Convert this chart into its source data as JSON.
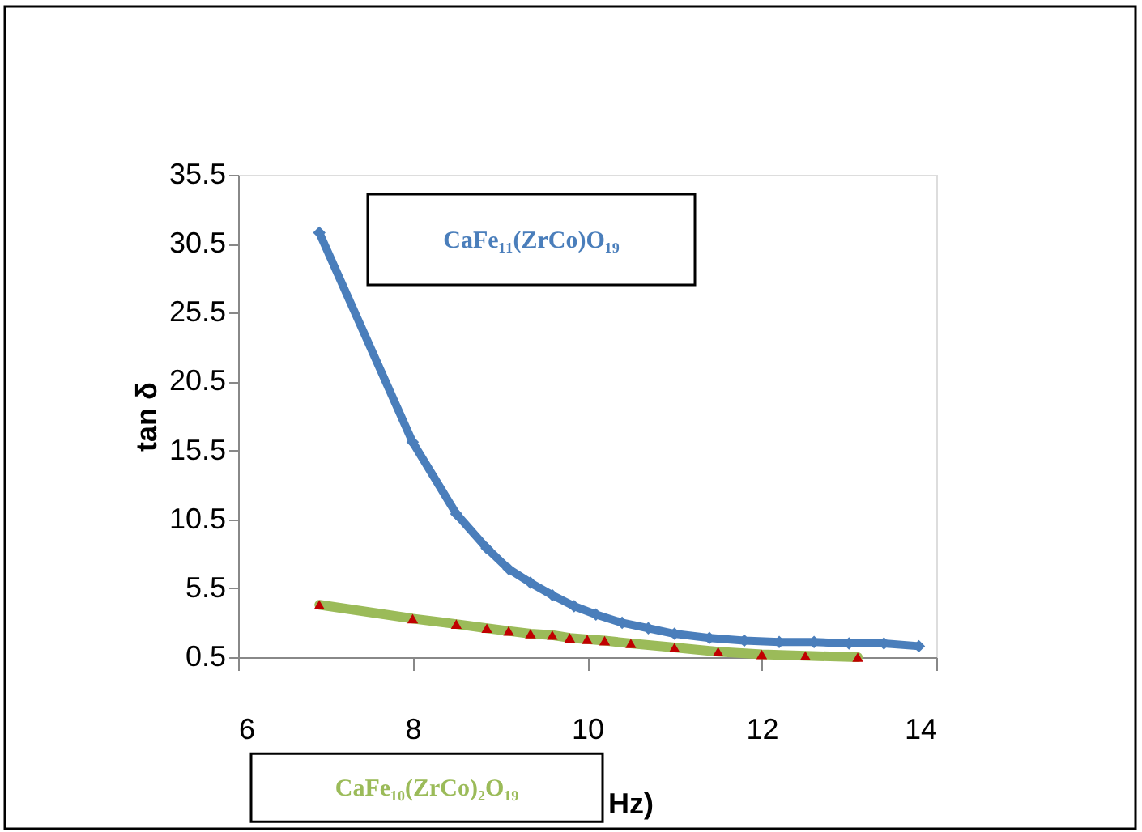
{
  "chart_data": {
    "type": "line",
    "xlabel": "Hz)",
    "ylabel": "tan δ",
    "xlim": [
      6,
      14
    ],
    "xticks": [
      6,
      8,
      10,
      12,
      14
    ],
    "ylim": [
      0.5,
      35.5
    ],
    "yticks": [
      0.5,
      5.5,
      10.5,
      15.5,
      20.5,
      25.5,
      30.5,
      35.5
    ],
    "grid": false,
    "legend": false,
    "series": [
      {
        "name": "CaFe₁₁(ZrCo)O₁₉",
        "color": "#4a7ebb",
        "marker": "diamond",
        "x": [
          6.93,
          8.0,
          8.5,
          8.85,
          9.1,
          9.35,
          9.6,
          9.85,
          10.1,
          10.4,
          10.7,
          11.0,
          11.4,
          11.8,
          12.2,
          12.6,
          13.0,
          13.4,
          13.8
        ],
        "values": [
          31.3,
          16.1,
          10.9,
          8.4,
          6.9,
          5.9,
          5.0,
          4.2,
          3.6,
          3.0,
          2.6,
          2.2,
          1.9,
          1.7,
          1.6,
          1.6,
          1.5,
          1.5,
          1.3
        ]
      },
      {
        "name": "CaFe₁₀(ZrCo)₂O₁₉",
        "color": "#9bbb59",
        "marker": "triangle",
        "colors": [
          "#c00000",
          "#c00000",
          "#c00000",
          "#c00000",
          "#c00000",
          "#c00000",
          "#c00000",
          "#c00000",
          "#c00000",
          "#c00000",
          "#c00000",
          "#c00000",
          "#c00000",
          "#c00000",
          "#c00000",
          "#c00000"
        ],
        "x": [
          6.93,
          8.0,
          8.5,
          8.85,
          9.1,
          9.35,
          9.6,
          9.8,
          10.0,
          10.2,
          10.5,
          11.0,
          11.5,
          12.0,
          12.5,
          13.1
        ],
        "values": [
          4.3,
          3.3,
          2.9,
          2.6,
          2.4,
          2.2,
          2.1,
          1.9,
          1.8,
          1.7,
          1.5,
          1.2,
          0.9,
          0.7,
          0.6,
          0.5
        ]
      }
    ]
  }
}
